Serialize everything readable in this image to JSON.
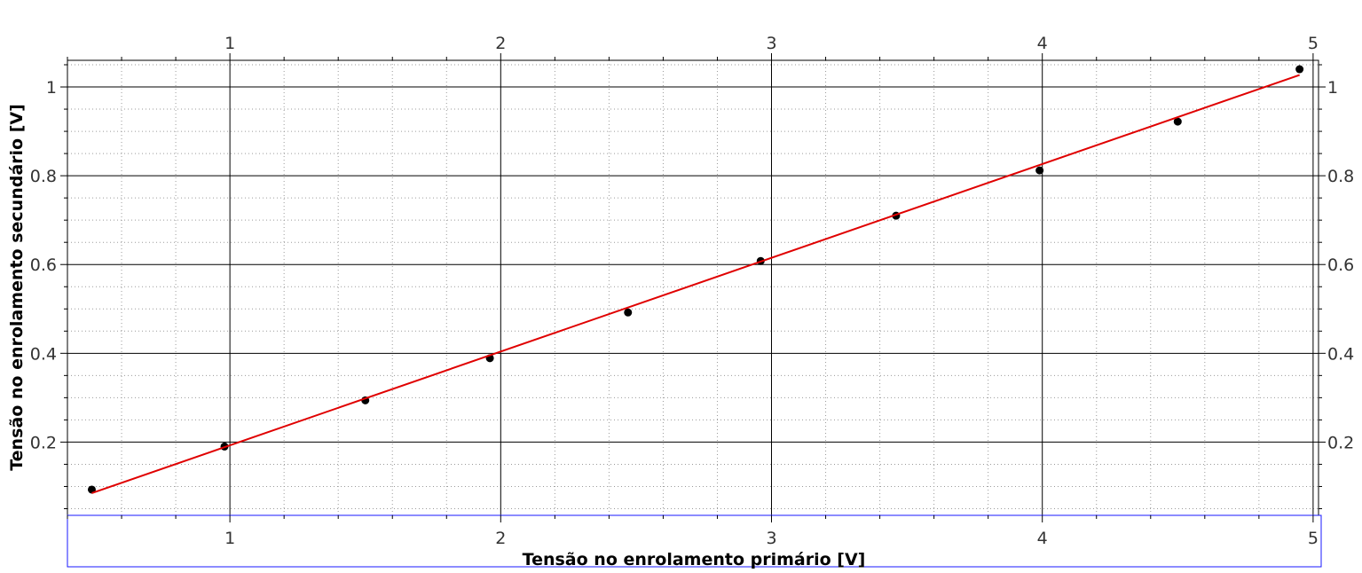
{
  "chart_data": {
    "type": "scatter",
    "title": "",
    "xlabel": "Tensão no enrolamento primário [V]",
    "ylabel": "Tensão no enrolamento secundário [V]",
    "xlim": [
      0.4,
      5.02
    ],
    "ylim": [
      0.035,
      1.06
    ],
    "xticks": [
      1,
      2,
      3,
      4,
      5
    ],
    "xtick_labels": [
      "1",
      "2",
      "3",
      "4",
      "5"
    ],
    "yticks": [
      0.2,
      0.4,
      0.6,
      0.8,
      1
    ],
    "ytick_labels": [
      "0.2",
      "0.4",
      "0.6",
      "0.8",
      "1"
    ],
    "grid": true,
    "legend": "none",
    "series": [
      {
        "type": "scatter",
        "color": "#000000",
        "x": [
          0.49,
          0.98,
          1.5,
          1.96,
          2.47,
          2.96,
          3.46,
          3.99,
          4.5,
          4.95
        ],
        "y": [
          0.093,
          0.19,
          0.294,
          0.389,
          0.492,
          0.608,
          0.71,
          0.812,
          0.922,
          1.04
        ]
      },
      {
        "type": "line",
        "color": "#e00000",
        "x": [
          0.49,
          4.95
        ],
        "y": [
          0.085,
          1.027
        ]
      }
    ]
  }
}
